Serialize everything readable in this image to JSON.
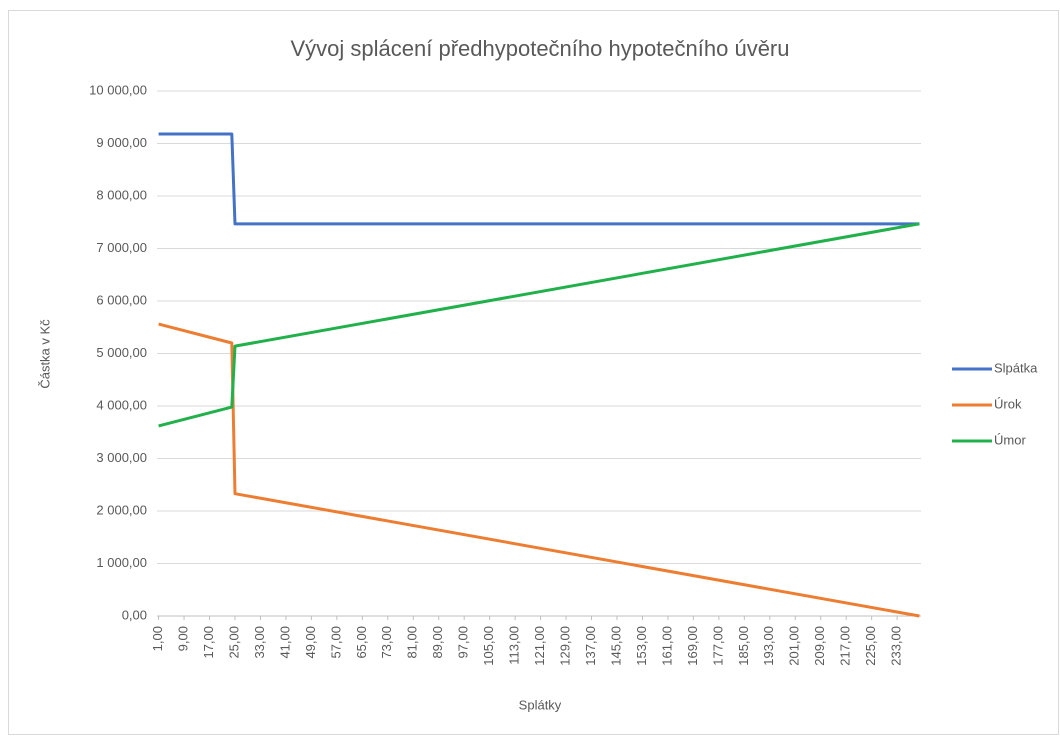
{
  "chart_data": {
    "type": "line",
    "title": "Vývoj splácení předhypotečního hypotečního úvěru",
    "x_label": "Splátky",
    "y_label": "Částka v Kč",
    "x": [
      1,
      24,
      25,
      240
    ],
    "series": [
      {
        "name": "Slpátka",
        "color": "#4472c4",
        "values": [
          9180,
          9180,
          7470,
          7470
        ]
      },
      {
        "name": "Úrok",
        "color": "#ed7d31",
        "values": [
          5560,
          5200,
          2330,
          0
        ]
      },
      {
        "name": "Úmor",
        "color": "#21b14b",
        "values": [
          3620,
          3980,
          5140,
          7470
        ]
      }
    ],
    "xlim": [
      0.5,
      240.5
    ],
    "xticks": [
      {
        "value": 1,
        "label": "1,00"
      },
      {
        "value": 9,
        "label": "9,00"
      },
      {
        "value": 17,
        "label": "17,00"
      },
      {
        "value": 25,
        "label": "25,00"
      },
      {
        "value": 33,
        "label": "33,00"
      },
      {
        "value": 41,
        "label": "41,00"
      },
      {
        "value": 49,
        "label": "49,00"
      },
      {
        "value": 57,
        "label": "57,00"
      },
      {
        "value": 65,
        "label": "65,00"
      },
      {
        "value": 73,
        "label": "73,00"
      },
      {
        "value": 81,
        "label": "81,00"
      },
      {
        "value": 89,
        "label": "89,00"
      },
      {
        "value": 97,
        "label": "97,00"
      },
      {
        "value": 105,
        "label": "105,00"
      },
      {
        "value": 113,
        "label": "113,00"
      },
      {
        "value": 121,
        "label": "121,00"
      },
      {
        "value": 129,
        "label": "129,00"
      },
      {
        "value": 137,
        "label": "137,00"
      },
      {
        "value": 145,
        "label": "145,00"
      },
      {
        "value": 153,
        "label": "153,00"
      },
      {
        "value": 161,
        "label": "161,00"
      },
      {
        "value": 169,
        "label": "169,00"
      },
      {
        "value": 177,
        "label": "177,00"
      },
      {
        "value": 185,
        "label": "185,00"
      },
      {
        "value": 193,
        "label": "193,00"
      },
      {
        "value": 201,
        "label": "201,00"
      },
      {
        "value": 209,
        "label": "209,00"
      },
      {
        "value": 217,
        "label": "217,00"
      },
      {
        "value": 225,
        "label": "225,00"
      },
      {
        "value": 233,
        "label": "233,00"
      }
    ],
    "ylim": [
      0,
      10000
    ],
    "yticks": [
      {
        "value": 0,
        "label": "0,00"
      },
      {
        "value": 1000,
        "label": "1 000,00"
      },
      {
        "value": 2000,
        "label": "2 000,00"
      },
      {
        "value": 3000,
        "label": "3 000,00"
      },
      {
        "value": 4000,
        "label": "4 000,00"
      },
      {
        "value": 5000,
        "label": "5 000,00"
      },
      {
        "value": 6000,
        "label": "6 000,00"
      },
      {
        "value": 7000,
        "label": "7 000,00"
      },
      {
        "value": 8000,
        "label": "8 000,00"
      },
      {
        "value": 9000,
        "label": "9 000,00"
      },
      {
        "value": 10000,
        "label": "10 000,00"
      }
    ],
    "grid": true,
    "legend": "right"
  }
}
